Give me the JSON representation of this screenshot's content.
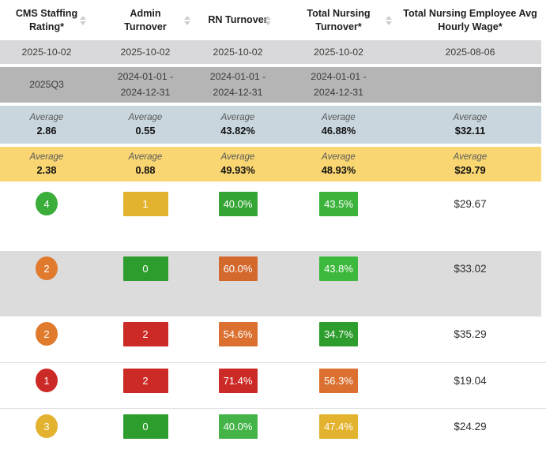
{
  "table": {
    "columns": [
      {
        "label": "CMS Staffing\nRating*",
        "sortable": true
      },
      {
        "label": "Admin\nTurnover",
        "sortable": true
      },
      {
        "label": "RN Turnover",
        "sortable": true
      },
      {
        "label": "Total Nursing\nTurnover*",
        "sortable": true
      },
      {
        "label": "Total Nursing Employee Avg\nHourly Wage*",
        "sortable": false
      }
    ],
    "date_row": [
      "2025-10-02",
      "2025-10-02",
      "2025-10-02",
      "2025-10-02",
      "2025-08-06"
    ],
    "period_row": [
      "2025Q3",
      "2024-01-01 -\n2024-12-31",
      "2024-01-01 -\n2024-12-31",
      "2024-01-01 -\n2024-12-31",
      ""
    ],
    "averages": [
      {
        "label": "Average",
        "bg": "#c9d6de",
        "values": [
          "2.86",
          "0.55",
          "43.82%",
          "46.88%",
          "$32.11"
        ]
      },
      {
        "label": "Average",
        "bg": "#f9d672",
        "values": [
          "2.38",
          "0.88",
          "49.93%",
          "48.93%",
          "$29.79"
        ]
      }
    ],
    "rows": [
      {
        "rating": "4",
        "rating_color": "#3aad3a",
        "admin": "1",
        "admin_color": "#e3b22e",
        "rn": "40.0%",
        "rn_color": "#35a535",
        "total": "43.5%",
        "total_color": "#3cb43c",
        "wage": "$29.67"
      },
      {
        "rating": "2",
        "rating_color": "#e07b2e",
        "admin": "0",
        "admin_color": "#2d9e2d",
        "rn": "60.0%",
        "rn_color": "#d4692e",
        "total": "43.8%",
        "total_color": "#3cb83c",
        "wage": "$33.02"
      },
      {
        "rating": "2",
        "rating_color": "#e07b2e",
        "admin": "2",
        "admin_color": "#cc2a26",
        "rn": "54.6%",
        "rn_color": "#db7030",
        "total": "34.7%",
        "total_color": "#2d9e2d",
        "wage": "$35.29"
      },
      {
        "rating": "1",
        "rating_color": "#cc2a26",
        "admin": "2",
        "admin_color": "#cc2a26",
        "rn": "71.4%",
        "rn_color": "#cc2a26",
        "total": "56.3%",
        "total_color": "#db7030",
        "wage": "$19.04"
      },
      {
        "rating": "3",
        "rating_color": "#e3b22e",
        "admin": "0",
        "admin_color": "#2d9e2d",
        "rn": "40.0%",
        "rn_color": "#44b449",
        "total": "47.4%",
        "total_color": "#e3b22e",
        "wage": "$24.29"
      }
    ]
  }
}
